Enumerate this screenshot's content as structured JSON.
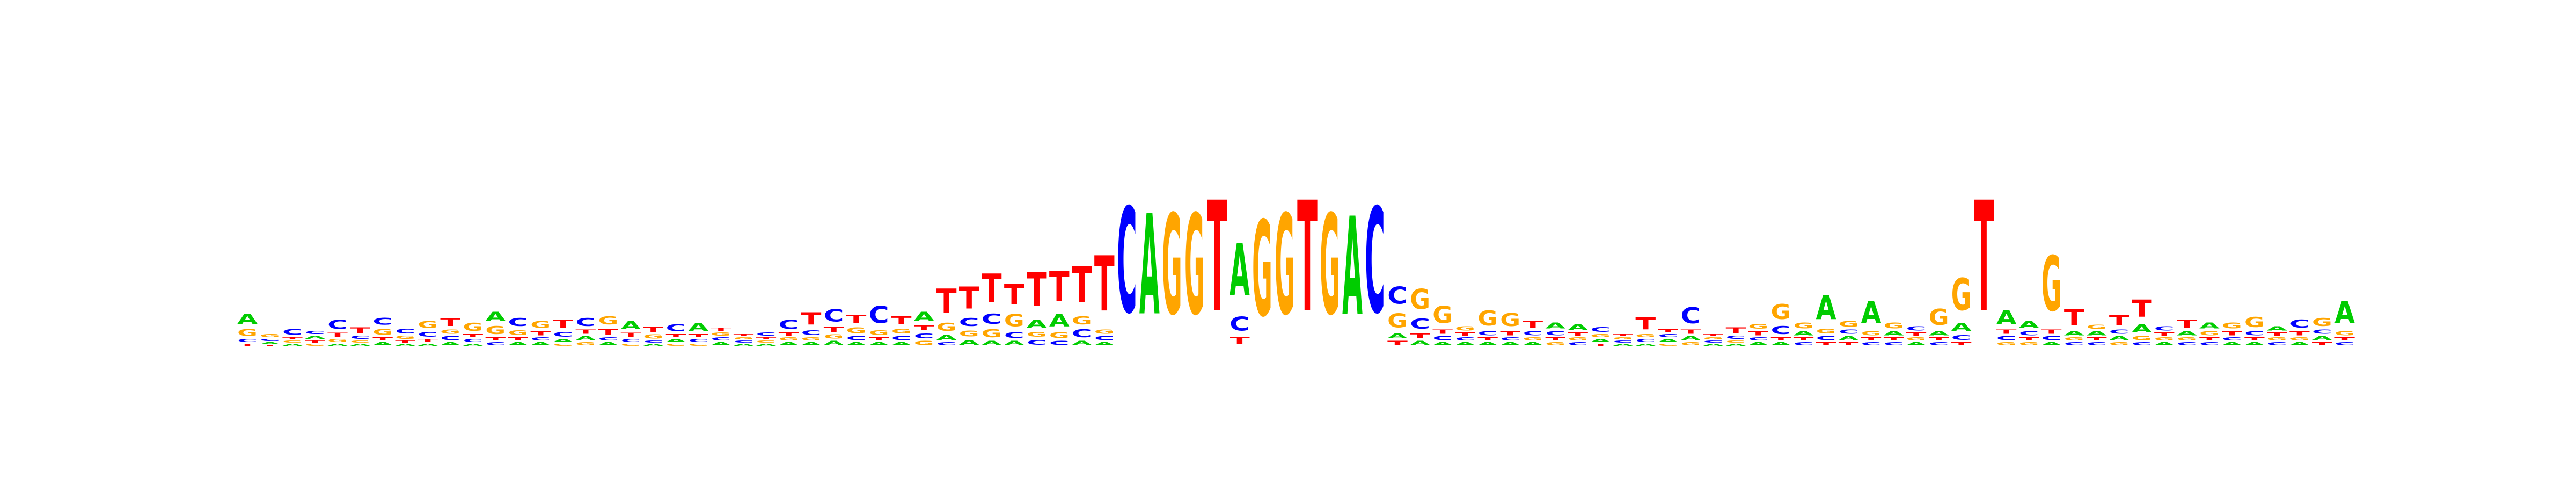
{
  "figure": {
    "type": "sequence-logo",
    "alphabet": [
      "A",
      "C",
      "G",
      "T"
    ],
    "colors": {
      "A": "#00cc00",
      "C": "#0000ff",
      "G": "#ffa500",
      "T": "#ff0000"
    },
    "positions": [
      {
        "A": 0.1,
        "C": 0.03,
        "G": 0.07,
        "T": 0.02
      },
      {
        "A": 0.02,
        "C": 0.02,
        "G": 0.03,
        "T": 0.01
      },
      {
        "A": 0.02,
        "C": 0.06,
        "G": 0.02,
        "T": 0.02
      },
      {
        "A": 0.03,
        "C": 0.03,
        "G": 0.02,
        "T": 0.02
      },
      {
        "A": 0.02,
        "C": 0.09,
        "G": 0.03,
        "T": 0.04
      },
      {
        "A": 0.02,
        "C": 0.03,
        "G": 0.02,
        "T": 0.06
      },
      {
        "A": 0.03,
        "C": 0.07,
        "G": 0.06,
        "T": 0.03
      },
      {
        "A": 0.02,
        "C": 0.05,
        "G": 0.03,
        "T": 0.02
      },
      {
        "A": 0.02,
        "C": 0.05,
        "G": 0.07,
        "T": 0.03
      },
      {
        "A": 0.03,
        "C": 0.04,
        "G": 0.04,
        "T": 0.08
      },
      {
        "A": 0.02,
        "C": 0.03,
        "G": 0.08,
        "T": 0.03
      },
      {
        "A": 0.09,
        "C": 0.03,
        "G": 0.08,
        "T": 0.03
      },
      {
        "A": 0.03,
        "C": 0.08,
        "G": 0.05,
        "T": 0.03
      },
      {
        "A": 0.03,
        "C": 0.03,
        "G": 0.07,
        "T": 0.04
      },
      {
        "A": 0.03,
        "C": 0.05,
        "G": 0.02,
        "T": 0.08
      },
      {
        "A": 0.04,
        "C": 0.08,
        "G": 0.03,
        "T": 0.04
      },
      {
        "A": 0.03,
        "C": 0.03,
        "G": 0.08,
        "T": 0.06
      },
      {
        "A": 0.08,
        "C": 0.03,
        "G": 0.02,
        "T": 0.04
      },
      {
        "A": 0.02,
        "C": 0.02,
        "G": 0.04,
        "T": 0.05
      },
      {
        "A": 0.03,
        "C": 0.07,
        "G": 0.02,
        "T": 0.03
      },
      {
        "A": 0.08,
        "C": 0.03,
        "G": 0.02,
        "T": 0.03
      },
      {
        "A": 0.03,
        "C": 0.03,
        "G": 0.03,
        "T": 0.03
      },
      {
        "A": 0.02,
        "C": 0.02,
        "G": 0.02,
        "T": 0.02
      },
      {
        "A": 0.02,
        "C": 0.03,
        "G": 0.02,
        "T": 0.02
      },
      {
        "A": 0.03,
        "C": 0.09,
        "G": 0.03,
        "T": 0.03
      },
      {
        "A": 0.03,
        "C": 0.05,
        "G": 0.03,
        "T": 0.12
      },
      {
        "A": 0.04,
        "C": 0.12,
        "G": 0.04,
        "T": 0.05
      },
      {
        "A": 0.03,
        "C": 0.04,
        "G": 0.06,
        "T": 0.08
      },
      {
        "A": 0.03,
        "C": 0.17,
        "G": 0.05,
        "T": 0.03
      },
      {
        "A": 0.03,
        "C": 0.04,
        "G": 0.05,
        "T": 0.08
      },
      {
        "A": 0.09,
        "C": 0.05,
        "G": 0.04,
        "T": 0.05
      },
      {
        "A": 0.05,
        "C": 0.03,
        "G": 0.08,
        "T": 0.24
      },
      {
        "A": 0.05,
        "C": 0.08,
        "G": 0.06,
        "T": 0.22
      },
      {
        "A": 0.04,
        "C": 0.1,
        "G": 0.08,
        "T": 0.28
      },
      {
        "A": 0.04,
        "C": 0.06,
        "G": 0.12,
        "T": 0.2
      },
      {
        "A": 0.08,
        "C": 0.05,
        "G": 0.05,
        "T": 0.34
      },
      {
        "A": 0.12,
        "C": 0.04,
        "G": 0.06,
        "T": 0.3
      },
      {
        "A": 0.04,
        "C": 0.08,
        "G": 0.08,
        "T": 0.36
      },
      {
        "A": 0.03,
        "C": 0.04,
        "G": 0.04,
        "T": 0.55
      },
      {
        "A": 0.0,
        "C": 1.05,
        "G": 0.0,
        "T": 0.0
      },
      {
        "A": 1.0,
        "C": 0.0,
        "G": 0.0,
        "T": 0.0
      },
      {
        "A": 0.0,
        "C": 0.0,
        "G": 1.0,
        "T": 0.0
      },
      {
        "A": 0.0,
        "C": 0.0,
        "G": 1.0,
        "T": 0.0
      },
      {
        "A": 0.0,
        "C": 0.0,
        "G": 0.0,
        "T": 1.1
      },
      {
        "A": 0.52,
        "C": 0.14,
        "G": 0.0,
        "T": 0.07
      },
      {
        "A": 0.0,
        "C": 0.0,
        "G": 0.95,
        "T": 0.0
      },
      {
        "A": 0.0,
        "C": 0.0,
        "G": 1.0,
        "T": 0.0
      },
      {
        "A": 0.0,
        "C": 0.0,
        "G": 0.0,
        "T": 1.1
      },
      {
        "A": 0.0,
        "C": 0.0,
        "G": 1.0,
        "T": 0.0
      },
      {
        "A": 0.98,
        "C": 0.0,
        "G": 0.0,
        "T": 0.0
      },
      {
        "A": 0.0,
        "C": 1.05,
        "G": 0.0,
        "T": 0.0
      },
      {
        "A": 0.05,
        "C": 0.17,
        "G": 0.14,
        "T": 0.04
      },
      {
        "A": 0.04,
        "C": 0.1,
        "G": 0.2,
        "T": 0.05
      },
      {
        "A": 0.03,
        "C": 0.04,
        "G": 0.17,
        "T": 0.04
      },
      {
        "A": 0.03,
        "C": 0.03,
        "G": 0.04,
        "T": 0.03
      },
      {
        "A": 0.03,
        "C": 0.04,
        "G": 0.15,
        "T": 0.03
      },
      {
        "A": 0.03,
        "C": 0.03,
        "G": 0.13,
        "T": 0.04
      },
      {
        "A": 0.03,
        "C": 0.04,
        "G": 0.03,
        "T": 0.07
      },
      {
        "A": 0.06,
        "C": 0.04,
        "G": 0.03,
        "T": 0.03
      },
      {
        "A": 0.06,
        "C": 0.03,
        "G": 0.03,
        "T": 0.03
      },
      {
        "A": 0.03,
        "C": 0.05,
        "G": 0.03,
        "T": 0.02
      },
      {
        "A": 0.02,
        "C": 0.02,
        "G": 0.02,
        "T": 0.02
      },
      {
        "A": 0.02,
        "C": 0.03,
        "G": 0.03,
        "T": 0.12
      },
      {
        "A": 0.03,
        "C": 0.03,
        "G": 0.02,
        "T": 0.03
      },
      {
        "A": 0.04,
        "C": 0.16,
        "G": 0.03,
        "T": 0.04
      },
      {
        "A": 0.02,
        "C": 0.02,
        "G": 0.02,
        "T": 0.02
      },
      {
        "A": 0.02,
        "C": 0.03,
        "G": 0.02,
        "T": 0.06
      },
      {
        "A": 0.03,
        "C": 0.03,
        "G": 0.05,
        "T": 0.04
      },
      {
        "A": 0.03,
        "C": 0.08,
        "G": 0.15,
        "T": 0.03
      },
      {
        "A": 0.04,
        "C": 0.03,
        "G": 0.06,
        "T": 0.03
      },
      {
        "A": 0.24,
        "C": 0.04,
        "G": 0.05,
        "T": 0.03
      },
      {
        "A": 0.04,
        "C": 0.04,
        "G": 0.06,
        "T": 0.03
      },
      {
        "A": 0.22,
        "C": 0.03,
        "G": 0.04,
        "T": 0.03
      },
      {
        "A": 0.04,
        "C": 0.03,
        "G": 0.06,
        "T": 0.03
      },
      {
        "A": 0.03,
        "C": 0.04,
        "G": 0.03,
        "T": 0.03
      },
      {
        "A": 0.04,
        "C": 0.03,
        "G": 0.16,
        "T": 0.03
      },
      {
        "A": 0.08,
        "C": 0.05,
        "G": 0.32,
        "T": 0.03
      },
      {
        "A": 0.0,
        "C": 0.0,
        "G": 0.0,
        "T": 1.1
      },
      {
        "A": 0.14,
        "C": 0.04,
        "G": 0.03,
        "T": 0.04
      },
      {
        "A": 0.07,
        "C": 0.04,
        "G": 0.03,
        "T": 0.03
      },
      {
        "A": 0.03,
        "C": 0.04,
        "G": 0.55,
        "T": 0.04
      },
      {
        "A": 0.04,
        "C": 0.03,
        "G": 0.03,
        "T": 0.16
      },
      {
        "A": 0.04,
        "C": 0.03,
        "G": 0.04,
        "T": 0.03
      },
      {
        "A": 0.04,
        "C": 0.04,
        "G": 0.03,
        "T": 0.1
      },
      {
        "A": 0.08,
        "C": 0.03,
        "G": 0.04,
        "T": 0.17
      },
      {
        "A": 0.03,
        "C": 0.04,
        "G": 0.03,
        "T": 0.03
      },
      {
        "A": 0.04,
        "C": 0.03,
        "G": 0.03,
        "T": 0.08
      },
      {
        "A": 0.06,
        "C": 0.03,
        "G": 0.04,
        "T": 0.03
      },
      {
        "A": 0.03,
        "C": 0.03,
        "G": 0.06,
        "T": 0.04
      },
      {
        "A": 0.03,
        "C": 0.04,
        "G": 0.1,
        "T": 0.03
      },
      {
        "A": 0.04,
        "C": 0.03,
        "G": 0.03,
        "T": 0.03
      },
      {
        "A": 0.03,
        "C": 0.08,
        "G": 0.03,
        "T": 0.04
      },
      {
        "A": 0.04,
        "C": 0.04,
        "G": 0.08,
        "T": 0.03
      },
      {
        "A": 0.22,
        "C": 0.03,
        "G": 0.04,
        "T": 0.03
      }
    ]
  }
}
